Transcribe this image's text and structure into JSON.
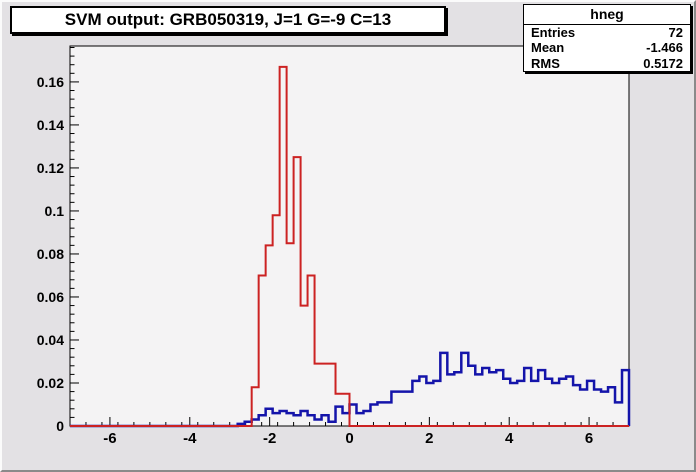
{
  "title": "SVM output: GRB050319, J=1 G=-9 C=13",
  "stats": {
    "name": "hneg",
    "rows": [
      {
        "label": "Entries",
        "value": "72"
      },
      {
        "label": "Mean",
        "value": "-1.466"
      },
      {
        "label": "RMS",
        "value": "0.5172"
      }
    ]
  },
  "colors": {
    "red_series": "#cc2222",
    "blue_series": "#1414aa",
    "axis": "#000000",
    "frame_background": "#f4f3f4",
    "canvas_background": "#e3e1e4"
  },
  "chart_data": {
    "type": "bar",
    "subtype": "step-outline-histogram",
    "title": "SVM output: GRB050319, J=1 G=-9 C=13",
    "xlabel": "",
    "ylabel": "",
    "xlim": [
      -7,
      7
    ],
    "ylim": [
      0,
      0.1767
    ],
    "grid": false,
    "legend_position": "none",
    "bin_width": 0.175,
    "x_major_ticks": [
      {
        "v": -6,
        "label": "-6"
      },
      {
        "v": -4,
        "label": "-4"
      },
      {
        "v": -2,
        "label": "-2"
      },
      {
        "v": 0,
        "label": "0"
      },
      {
        "v": 2,
        "label": "2"
      },
      {
        "v": 4,
        "label": "4"
      },
      {
        "v": 6,
        "label": "6"
      }
    ],
    "x_minor_step": 0.4,
    "y_major_ticks": [
      {
        "v": 0,
        "label": "0"
      },
      {
        "v": 0.02,
        "label": "0.02"
      },
      {
        "v": 0.04,
        "label": "0.04"
      },
      {
        "v": 0.06,
        "label": "0.06"
      },
      {
        "v": 0.08,
        "label": "0.08"
      },
      {
        "v": 0.1,
        "label": "0.1"
      },
      {
        "v": 0.12,
        "label": "0.12"
      },
      {
        "v": 0.14,
        "label": "0.14"
      },
      {
        "v": 0.16,
        "label": "0.16"
      }
    ],
    "y_minor_step": 0.004,
    "series": [
      {
        "name": "hneg-red-histogram",
        "color": "#cc2222",
        "stroke_width": 2,
        "first_bin_x": -2.45,
        "values": [
          0.018,
          0.07,
          0.084,
          0.098,
          0.167,
          0.085,
          0.125,
          0.056,
          0.07,
          0.029,
          0.029,
          0.029,
          0.015,
          0.015
        ]
      },
      {
        "name": "blue-histogram",
        "color": "#1414aa",
        "stroke_width": 2.5,
        "first_bin_x": -2.8,
        "values": [
          0.001,
          0.002,
          0.003,
          0.005,
          0.008,
          0.006,
          0.007,
          0.006,
          0.005,
          0.007,
          0.005,
          0.003,
          0.005,
          0.002,
          0.009,
          0.006,
          0.01,
          0.006,
          0.007,
          0.01,
          0.011,
          0.011,
          0.016,
          0.016,
          0.016,
          0.021,
          0.023,
          0.02,
          0.021,
          0.034,
          0.024,
          0.025,
          0.034,
          0.028,
          0.024,
          0.027,
          0.025,
          0.026,
          0.022,
          0.02,
          0.021,
          0.027,
          0.021,
          0.026,
          0.022,
          0.02,
          0.022,
          0.023,
          0.019,
          0.017,
          0.021,
          0.017,
          0.016,
          0.018,
          0.011,
          0.026
        ]
      }
    ]
  }
}
